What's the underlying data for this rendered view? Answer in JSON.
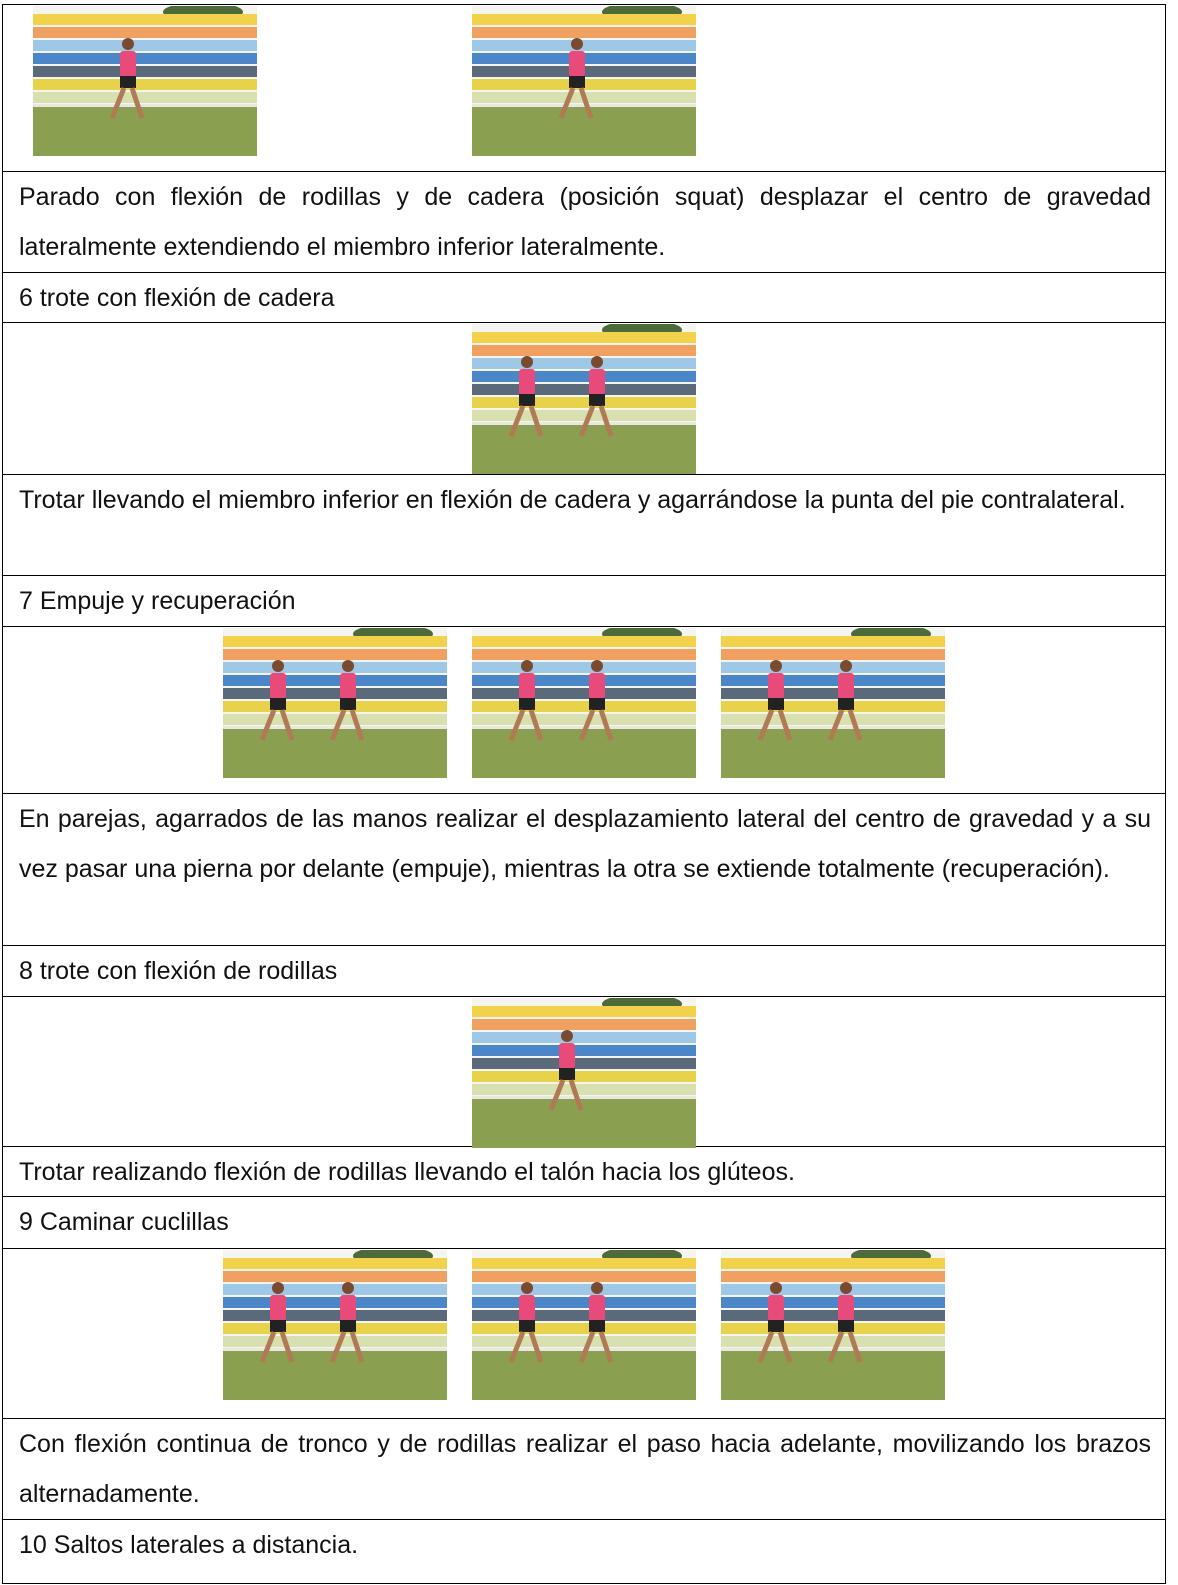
{
  "table": {
    "rows": [
      {
        "photos": 2
      },
      {
        "text": "Parado con flexión de rodillas y de cadera (posición squat) desplazar el centro de gravedad lateralmente extendiendo el miembro inferior lateralmente."
      },
      {
        "text": "6 trote con flexión de cadera"
      },
      {
        "photos": 1
      },
      {
        "text": "Trotar llevando el miembro inferior en flexión de cadera y agarrándose la punta del pie contralateral."
      },
      {
        "text": "7 Empuje y recuperación"
      },
      {
        "photos": 3
      },
      {
        "text": "En parejas, agarrados de las manos realizar el desplazamiento lateral del centro de gravedad y a su vez pasar una pierna por delante (empuje), mientras la otra se extiende totalmente (recuperación)."
      },
      {
        "text": "8 trote con flexión de rodillas"
      },
      {
        "photos": 1
      },
      {
        "text": "Trotar realizando flexión de rodillas llevando el talón hacia los glúteos."
      },
      {
        "text": "9 Caminar cuclillas"
      },
      {
        "photos": 3
      },
      {
        "text": "Con flexión continua de tronco y de rodillas realizar el paso hacia adelante, movilizando los brazos alternadamente."
      },
      {
        "text": "10 Saltos laterales a distancia."
      }
    ]
  }
}
